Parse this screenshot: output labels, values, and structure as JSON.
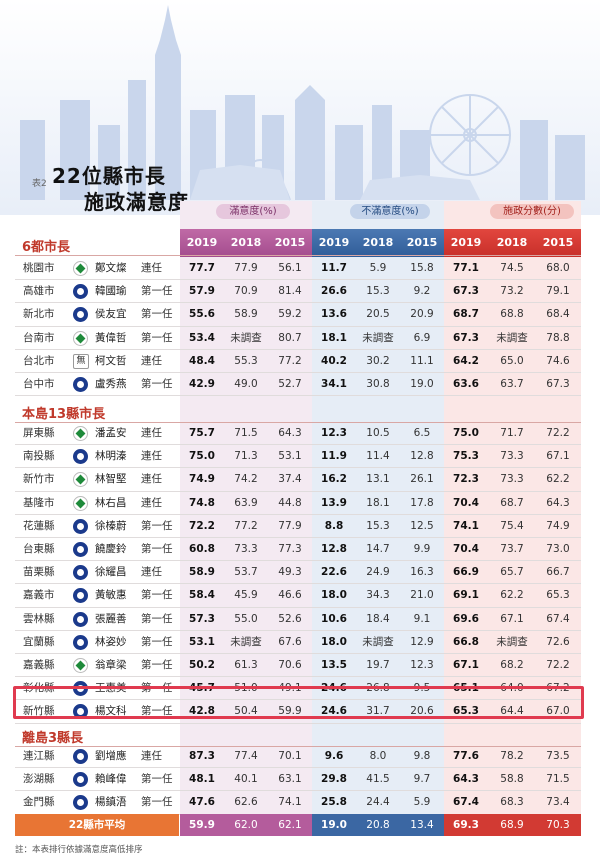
{
  "title": {
    "prefix": "表2",
    "line1": "22位縣市長",
    "line2": "施政滿意度"
  },
  "groups": {
    "satisfaction": "滿意度(%)",
    "dissatisfaction": "不滿意度(%)",
    "score": "施政分數(分)"
  },
  "years": [
    "2019",
    "2018",
    "2015"
  ],
  "sections": [
    {
      "title": "6都市長",
      "rows": [
        {
          "county": "桃園市",
          "party": "dpp",
          "name": "鄭文燦",
          "term": "連任",
          "sat": [
            "77.7",
            "77.9",
            "56.1"
          ],
          "dis": [
            "11.7",
            "5.9",
            "15.8"
          ],
          "score": [
            "77.1",
            "74.5",
            "68.0"
          ]
        },
        {
          "county": "高雄市",
          "party": "kmt",
          "name": "韓國瑜",
          "term": "第一任",
          "sat": [
            "57.9",
            "70.9",
            "81.4"
          ],
          "dis": [
            "26.6",
            "15.3",
            "9.2"
          ],
          "score": [
            "67.3",
            "73.2",
            "79.1"
          ]
        },
        {
          "county": "新北市",
          "party": "kmt",
          "name": "侯友宜",
          "term": "第一任",
          "sat": [
            "55.6",
            "58.9",
            "59.2"
          ],
          "dis": [
            "13.6",
            "20.5",
            "20.9"
          ],
          "score": [
            "68.7",
            "68.8",
            "68.4"
          ]
        },
        {
          "county": "台南市",
          "party": "dpp",
          "name": "黃偉哲",
          "term": "第一任",
          "sat": [
            "53.4",
            "未調查",
            "80.7"
          ],
          "dis": [
            "18.1",
            "未調查",
            "6.9"
          ],
          "score": [
            "67.3",
            "未調查",
            "78.8"
          ]
        },
        {
          "county": "台北市",
          "party": "ind",
          "party_label": "無",
          "name": "柯文哲",
          "term": "連任",
          "sat": [
            "48.4",
            "55.3",
            "77.2"
          ],
          "dis": [
            "40.2",
            "30.2",
            "11.1"
          ],
          "score": [
            "64.2",
            "65.0",
            "74.6"
          ]
        },
        {
          "county": "台中市",
          "party": "kmt",
          "name": "盧秀燕",
          "term": "第一任",
          "sat": [
            "42.9",
            "49.0",
            "52.7"
          ],
          "dis": [
            "34.1",
            "30.8",
            "19.0"
          ],
          "score": [
            "63.6",
            "63.7",
            "67.3"
          ]
        }
      ]
    },
    {
      "title": "本島13縣市長",
      "rows": [
        {
          "county": "屏東縣",
          "party": "dpp",
          "name": "潘孟安",
          "term": "連任",
          "sat": [
            "75.7",
            "71.5",
            "64.3"
          ],
          "dis": [
            "12.3",
            "10.5",
            "6.5"
          ],
          "score": [
            "75.0",
            "71.7",
            "72.2"
          ]
        },
        {
          "county": "南投縣",
          "party": "kmt",
          "name": "林明溱",
          "term": "連任",
          "sat": [
            "75.0",
            "71.3",
            "53.1"
          ],
          "dis": [
            "11.9",
            "11.4",
            "12.8"
          ],
          "score": [
            "75.3",
            "73.3",
            "67.1"
          ]
        },
        {
          "county": "新竹市",
          "party": "dpp",
          "name": "林智堅",
          "term": "連任",
          "sat": [
            "74.9",
            "74.2",
            "37.4"
          ],
          "dis": [
            "16.2",
            "13.1",
            "26.1"
          ],
          "score": [
            "72.3",
            "73.3",
            "62.2"
          ]
        },
        {
          "county": "基隆市",
          "party": "dpp",
          "name": "林右昌",
          "term": "連任",
          "sat": [
            "74.8",
            "63.9",
            "44.8"
          ],
          "dis": [
            "13.9",
            "18.1",
            "17.8"
          ],
          "score": [
            "70.4",
            "68.7",
            "64.3"
          ]
        },
        {
          "county": "花蓮縣",
          "party": "kmt",
          "name": "徐榛蔚",
          "term": "第一任",
          "sat": [
            "72.2",
            "77.2",
            "77.9"
          ],
          "dis": [
            "8.8",
            "15.3",
            "12.5"
          ],
          "score": [
            "74.1",
            "75.4",
            "74.9"
          ]
        },
        {
          "county": "台東縣",
          "party": "kmt",
          "name": "饒慶鈴",
          "term": "第一任",
          "sat": [
            "60.8",
            "73.3",
            "77.3"
          ],
          "dis": [
            "12.8",
            "14.7",
            "9.9"
          ],
          "score": [
            "70.4",
            "73.7",
            "73.0"
          ]
        },
        {
          "county": "苗栗縣",
          "party": "kmt",
          "name": "徐耀昌",
          "term": "連任",
          "sat": [
            "58.9",
            "53.7",
            "49.3"
          ],
          "dis": [
            "22.6",
            "24.9",
            "16.3"
          ],
          "score": [
            "66.9",
            "65.7",
            "66.7"
          ]
        },
        {
          "county": "嘉義市",
          "party": "kmt",
          "name": "黃敏惠",
          "term": "第一任",
          "sat": [
            "58.4",
            "45.9",
            "46.6"
          ],
          "dis": [
            "18.0",
            "34.3",
            "21.0"
          ],
          "score": [
            "69.1",
            "62.2",
            "65.3"
          ]
        },
        {
          "county": "雲林縣",
          "party": "kmt",
          "name": "張麗善",
          "term": "第一任",
          "sat": [
            "57.3",
            "55.0",
            "52.6"
          ],
          "dis": [
            "10.6",
            "18.4",
            "9.1"
          ],
          "score": [
            "69.6",
            "67.1",
            "67.4"
          ]
        },
        {
          "county": "宜蘭縣",
          "party": "kmt",
          "name": "林姿妙",
          "term": "第一任",
          "sat": [
            "53.1",
            "未調查",
            "67.6"
          ],
          "dis": [
            "18.0",
            "未調查",
            "12.9"
          ],
          "score": [
            "66.8",
            "未調查",
            "72.6"
          ]
        },
        {
          "county": "嘉義縣",
          "party": "dpp",
          "name": "翁章梁",
          "term": "第一任",
          "sat": [
            "50.2",
            "61.3",
            "70.6"
          ],
          "dis": [
            "13.5",
            "19.7",
            "12.3"
          ],
          "score": [
            "67.1",
            "68.2",
            "72.2"
          ]
        },
        {
          "county": "彰化縣",
          "party": "kmt",
          "name": "王惠美",
          "term": "第一任",
          "sat": [
            "45.7",
            "51.0",
            "49.1"
          ],
          "dis": [
            "24.6",
            "26.8",
            "9.5"
          ],
          "score": [
            "65.1",
            "64.0",
            "67.2"
          ]
        },
        {
          "county": "新竹縣",
          "party": "kmt",
          "name": "楊文科",
          "term": "第一任",
          "sat": [
            "42.8",
            "50.4",
            "59.9"
          ],
          "dis": [
            "24.6",
            "31.7",
            "20.6"
          ],
          "score": [
            "65.3",
            "64.4",
            "67.0"
          ]
        }
      ]
    },
    {
      "title": "離島3縣長",
      "rows": [
        {
          "county": "連江縣",
          "party": "kmt",
          "name": "劉增應",
          "term": "連任",
          "sat": [
            "87.3",
            "77.4",
            "70.1"
          ],
          "dis": [
            "9.6",
            "8.0",
            "9.8"
          ],
          "score": [
            "77.6",
            "78.2",
            "73.5"
          ]
        },
        {
          "county": "澎湖縣",
          "party": "kmt",
          "name": "賴峰偉",
          "term": "第一任",
          "sat": [
            "48.1",
            "40.1",
            "63.1"
          ],
          "dis": [
            "29.8",
            "41.5",
            "9.7"
          ],
          "score": [
            "64.3",
            "58.8",
            "71.5"
          ]
        },
        {
          "county": "金門縣",
          "party": "kmt",
          "name": "楊鎮浯",
          "term": "第一任",
          "sat": [
            "47.6",
            "62.6",
            "74.1"
          ],
          "dis": [
            "25.8",
            "24.4",
            "5.9"
          ],
          "score": [
            "67.4",
            "68.3",
            "73.4"
          ]
        }
      ]
    }
  ],
  "average": {
    "label": "22縣市平均",
    "sat": [
      "59.9",
      "62.0",
      "62.1"
    ],
    "dis": [
      "19.0",
      "20.8",
      "13.4"
    ],
    "score": [
      "69.3",
      "68.9",
      "70.3"
    ]
  },
  "note": "註：本表排行依據滿意度高低排序",
  "colors": {
    "satisfaction": "#a34c8e",
    "dissatisfaction": "#2f5c98",
    "score": "#c72f2a",
    "section_title": "#c0392b",
    "highlight": "#e03a4f",
    "average_label": "#e87534"
  }
}
